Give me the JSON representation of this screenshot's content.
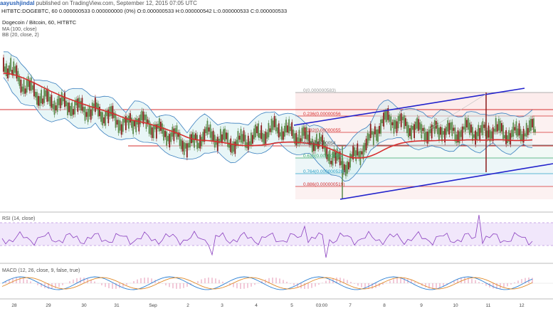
{
  "header": {
    "author": "aayushjindal",
    "published": "published on TradingView.com, September 12, 2015 07:05 UTC",
    "ticker_line": "HITBTC:DOGEBTC, 60  0.000000533 0.000000000 (0%) O:0.000000533 H:0.000000542 L:0.000000533 C:0.000000533"
  },
  "main_panel": {
    "title": "Dogecoin / Bitcoin, 60, HITBTC",
    "ma_label": "MA (100, close)",
    "bb_label": "BB (20, close, 2)"
  },
  "rsi_panel": {
    "label": "RSI (14, close)"
  },
  "macd_panel": {
    "label": "MACD (12, 26, close, 9, false, true)"
  },
  "colors": {
    "candle_up": "#5a8a4a",
    "candle_down": "#8b1a1a",
    "ma": "#d62f2f",
    "bb": "#3a7fbf",
    "bb_fill": "#d6eef0",
    "channel": "#2222cc",
    "hline": "#d62f2f",
    "rsi": "#8a3fbf",
    "rsi_bg": "#f1e7fb",
    "macd": "#2a7fd4",
    "signal": "#e08a2a",
    "hist": "#e07aa0"
  },
  "chart_data": {
    "type": "candlestick",
    "x_tick_labels": [
      "28",
      "29",
      "30",
      "31",
      "Sep",
      "2",
      "3",
      "4",
      "5",
      "03:00",
      "7",
      "8",
      "9",
      "10",
      "11",
      "12"
    ],
    "fibonacci_levels": [
      {
        "ratio": "0",
        "price": "0.000000583",
        "label": "0(0.000000583)"
      },
      {
        "ratio": "0.236",
        "label": "0.236(0.00000056"
      },
      {
        "ratio": "0.382",
        "label": "0.382(0.00000055"
      },
      {
        "ratio": "0.5",
        "label": "0.5(0.00000054"
      },
      {
        "ratio": "0.618",
        "label": "0.618(0.000000538"
      },
      {
        "ratio": "0.764",
        "label": "0.764(0.000000528)"
      },
      {
        "ratio": "0.886",
        "label": "0.886(0.000000519)"
      }
    ],
    "horizontal_lines": [
      "0.000000565",
      "0.000000548"
    ],
    "price_series_relative": [
      0.86,
      0.84,
      0.8,
      0.78,
      0.74,
      0.72,
      0.7,
      0.68,
      0.66,
      0.64,
      0.63,
      0.62,
      0.62,
      0.61,
      0.6,
      0.6,
      0.59,
      0.58,
      0.58,
      0.57,
      0.56,
      0.57,
      0.55,
      0.54,
      0.53,
      0.52,
      0.5,
      0.48,
      0.47,
      0.49,
      0.51,
      0.5,
      0.49,
      0.48,
      0.46,
      0.44,
      0.43,
      0.42,
      0.41,
      0.4,
      0.38,
      0.36,
      0.34,
      0.36,
      0.38,
      0.4,
      0.42,
      0.41,
      0.4,
      0.39,
      0.38,
      0.37,
      0.36,
      0.36,
      0.37,
      0.38,
      0.39,
      0.4,
      0.41,
      0.42,
      0.43,
      0.44,
      0.46,
      0.45,
      0.44,
      0.43,
      0.42,
      0.41,
      0.4,
      0.39,
      0.38,
      0.37,
      0.35,
      0.33,
      0.3,
      0.27,
      0.25,
      0.23,
      0.22,
      0.24,
      0.27,
      0.3,
      0.33,
      0.36,
      0.4,
      0.44,
      0.48,
      0.5,
      0.51,
      0.5,
      0.49,
      0.48,
      0.47,
      0.46,
      0.45,
      0.44,
      0.44,
      0.43,
      0.43,
      0.44,
      0.45,
      0.44,
      0.43,
      0.42,
      0.43,
      0.44,
      0.45,
      0.44,
      0.43,
      0.42,
      0.43,
      0.44,
      0.45,
      0.44,
      0.43,
      0.42,
      0.41,
      0.42,
      0.43,
      0.44,
      0.44,
      0.45
    ]
  }
}
